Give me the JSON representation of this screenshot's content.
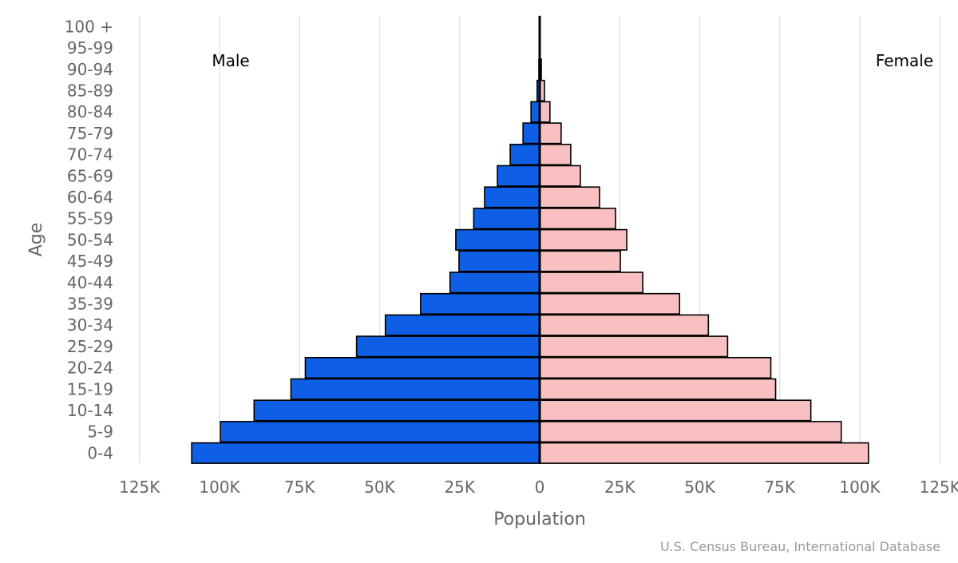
{
  "chart_data": {
    "type": "bar",
    "orientation": "horizontal-population-pyramid",
    "ylabel": "Age",
    "xlabel": "Population",
    "credit": "U.S. Census Bureau, International Database",
    "xlim": [
      -125000,
      125000
    ],
    "x_ticks": [
      -125000,
      -100000,
      -75000,
      -50000,
      -25000,
      0,
      25000,
      50000,
      75000,
      100000,
      125000
    ],
    "x_tick_labels": [
      "125K",
      "100K",
      "75K",
      "50K",
      "25K",
      "0",
      "25K",
      "50K",
      "75K",
      "100K",
      "125K"
    ],
    "categories": [
      "100 +",
      "95-99",
      "90-94",
      "85-89",
      "80-84",
      "75-79",
      "70-74",
      "65-69",
      "60-64",
      "55-59",
      "50-54",
      "45-49",
      "40-44",
      "35-39",
      "30-34",
      "25-29",
      "20-24",
      "15-19",
      "10-14",
      "5-9",
      "0-4"
    ],
    "series": [
      {
        "name": "Male",
        "color": "#0f5fe6",
        "values": [
          10,
          60,
          250,
          800,
          2700,
          5200,
          9200,
          13200,
          17200,
          20600,
          26200,
          25200,
          28000,
          37200,
          48200,
          57200,
          73200,
          77700,
          89200,
          99700,
          108700
        ]
      },
      {
        "name": "Female",
        "color": "#f8c0c0",
        "values": [
          20,
          120,
          500,
          1500,
          3200,
          6700,
          9700,
          12700,
          18700,
          23700,
          27200,
          25200,
          32200,
          43700,
          52700,
          58700,
          72200,
          73700,
          84700,
          94200,
          102700
        ]
      }
    ]
  }
}
